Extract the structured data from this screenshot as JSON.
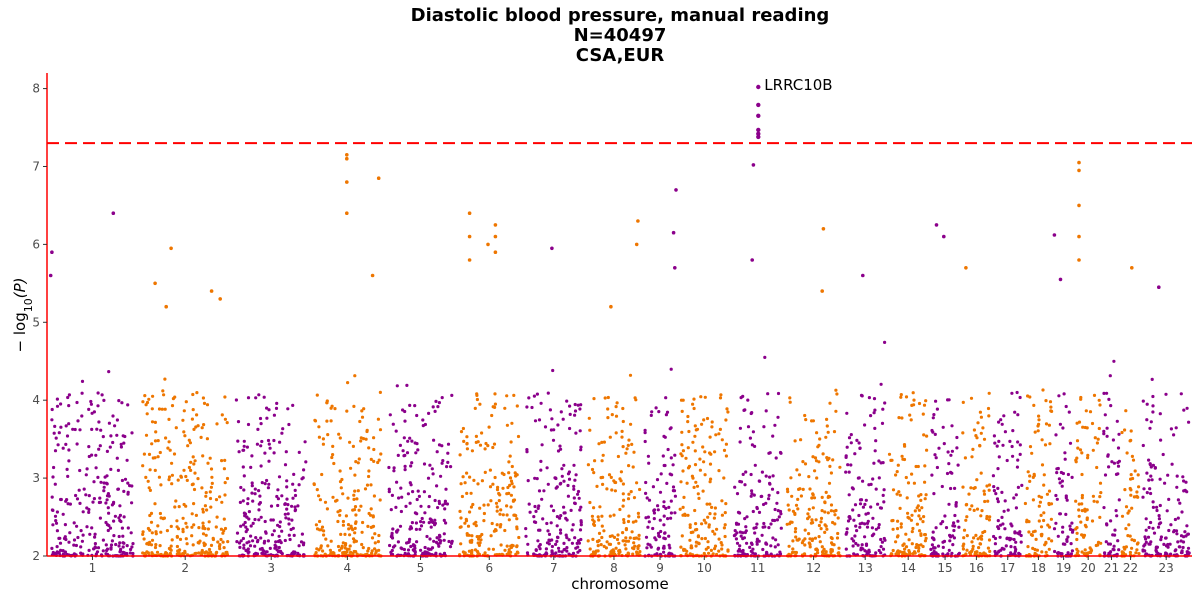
{
  "chart_data": {
    "type": "scatter",
    "subtype": "manhattan",
    "title": [
      "Diastolic blood pressure, manual reading",
      "N=40497",
      "CSA,EUR"
    ],
    "xlabel": "chromosome",
    "ylabel_math": {
      "prefix": "− log",
      "subscript": "10",
      "suffix": "(P)"
    },
    "ylim": [
      2,
      8.2
    ],
    "yticks": [
      2,
      3,
      4,
      5,
      6,
      7,
      8
    ],
    "grid": false,
    "legend": "none",
    "significance_line": {
      "value": 7.3,
      "color": "#ff0000",
      "style": "dashed"
    },
    "axis_color": "#ff0000",
    "colors": {
      "odd": "#8b008b",
      "even": "#ee7600"
    },
    "chromosomes": [
      {
        "label": "1",
        "start": 0,
        "length": 7.4
      },
      {
        "label": "2",
        "start": 7.4,
        "length": 7.7
      },
      {
        "label": "3",
        "start": 15.1,
        "length": 6.3
      },
      {
        "label": "4",
        "start": 21.4,
        "length": 6.1
      },
      {
        "label": "5",
        "start": 27.5,
        "length": 5.8
      },
      {
        "label": "6",
        "start": 33.3,
        "length": 5.4
      },
      {
        "label": "7",
        "start": 38.7,
        "length": 5.1
      },
      {
        "label": "8",
        "start": 43.8,
        "length": 4.7
      },
      {
        "label": "9",
        "start": 48.5,
        "length": 2.8
      },
      {
        "label": "10",
        "start": 51.3,
        "length": 4.4
      },
      {
        "label": "11",
        "start": 55.7,
        "length": 4.3
      },
      {
        "label": "12",
        "start": 60.0,
        "length": 4.8
      },
      {
        "label": "13",
        "start": 64.8,
        "length": 3.6
      },
      {
        "label": "14",
        "start": 68.4,
        "length": 3.4
      },
      {
        "label": "15",
        "start": 71.8,
        "length": 2.6
      },
      {
        "label": "16",
        "start": 74.4,
        "length": 2.5
      },
      {
        "label": "17",
        "start": 76.9,
        "length": 2.6
      },
      {
        "label": "18",
        "start": 79.5,
        "length": 2.4
      },
      {
        "label": "19",
        "start": 81.9,
        "length": 1.7
      },
      {
        "label": "20",
        "start": 83.6,
        "length": 2.3
      },
      {
        "label": "21",
        "start": 85.9,
        "length": 1.5
      },
      {
        "label": "22",
        "start": 87.4,
        "length": 1.6
      },
      {
        "label": "23",
        "start": 89.0,
        "length": 4.2
      }
    ],
    "xlim": [
      0,
      93.2
    ],
    "peaks": [
      {
        "x": 0.4,
        "y": 5.9
      },
      {
        "x": 0.3,
        "y": 5.6
      },
      {
        "x": 5.4,
        "y": 6.4
      },
      {
        "x": 10.1,
        "y": 5.95
      },
      {
        "x": 8.8,
        "y": 5.5
      },
      {
        "x": 9.7,
        "y": 5.2
      },
      {
        "x": 14.1,
        "y": 5.3
      },
      {
        "x": 13.4,
        "y": 5.4
      },
      {
        "x": 24.4,
        "y": 7.15
      },
      {
        "x": 24.4,
        "y": 7.1
      },
      {
        "x": 24.4,
        "y": 6.8
      },
      {
        "x": 24.4,
        "y": 6.4
      },
      {
        "x": 27.0,
        "y": 6.85
      },
      {
        "x": 26.5,
        "y": 5.6
      },
      {
        "x": 34.4,
        "y": 6.4
      },
      {
        "x": 34.4,
        "y": 6.1
      },
      {
        "x": 34.4,
        "y": 5.8
      },
      {
        "x": 35.9,
        "y": 6.0
      },
      {
        "x": 36.5,
        "y": 6.25
      },
      {
        "x": 36.5,
        "y": 6.1
      },
      {
        "x": 36.5,
        "y": 5.9
      },
      {
        "x": 41.1,
        "y": 5.95
      },
      {
        "x": 45.9,
        "y": 5.2
      },
      {
        "x": 48.1,
        "y": 6.3
      },
      {
        "x": 48.0,
        "y": 6.0
      },
      {
        "x": 51.2,
        "y": 6.7
      },
      {
        "x": 51.0,
        "y": 6.15
      },
      {
        "x": 51.1,
        "y": 5.7
      },
      {
        "x": 57.5,
        "y": 7.02
      },
      {
        "x": 57.4,
        "y": 5.8
      },
      {
        "x": 63.2,
        "y": 6.2
      },
      {
        "x": 63.1,
        "y": 5.4
      },
      {
        "x": 66.4,
        "y": 5.6
      },
      {
        "x": 72.4,
        "y": 6.25
      },
      {
        "x": 73.0,
        "y": 6.1
      },
      {
        "x": 74.8,
        "y": 5.7
      },
      {
        "x": 82.0,
        "y": 6.12
      },
      {
        "x": 82.5,
        "y": 5.55
      },
      {
        "x": 84.0,
        "y": 7.05
      },
      {
        "x": 84.0,
        "y": 6.95
      },
      {
        "x": 84.0,
        "y": 6.5
      },
      {
        "x": 84.0,
        "y": 6.1
      },
      {
        "x": 84.0,
        "y": 5.8
      },
      {
        "x": 88.3,
        "y": 5.7
      },
      {
        "x": 90.5,
        "y": 5.45
      }
    ],
    "top_hit": {
      "label": "LRRC10B",
      "x": 57.9,
      "values": [
        8.02,
        7.79,
        7.65,
        7.47,
        7.42,
        7.38
      ]
    }
  }
}
